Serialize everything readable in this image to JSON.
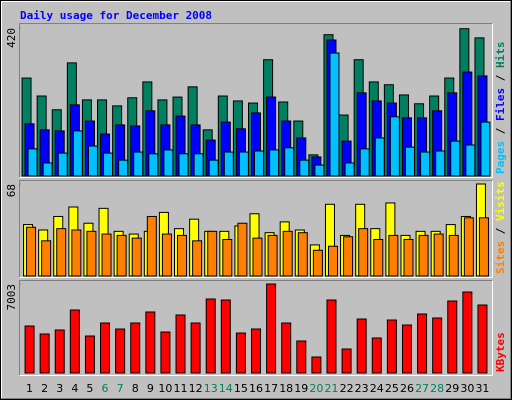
{
  "chart_data": [
    {
      "type": "bar",
      "title": "Daily usage for December 2008",
      "ylim": [
        0,
        420
      ],
      "yticks": [
        420
      ],
      "legend_separator": " / ",
      "series": [
        {
          "name": "Hits",
          "color": "#008060",
          "values": [
            278,
            227,
            188,
            321,
            216,
            216,
            199,
            222,
            267,
            216,
            224,
            253,
            131,
            227,
            213,
            207,
            330,
            210,
            156,
            60,
            401,
            173,
            330,
            267,
            259,
            230,
            205,
            227,
            278,
            418,
            392
          ]
        },
        {
          "name": "Files",
          "color": "#0000ff",
          "values": [
            148,
            131,
            128,
            202,
            156,
            119,
            145,
            142,
            185,
            145,
            170,
            145,
            102,
            153,
            134,
            179,
            224,
            156,
            108,
            54,
            386,
            99,
            236,
            213,
            207,
            165,
            165,
            185,
            236,
            295,
            284
          ]
        },
        {
          "name": "Pages",
          "color": "#00c0ff",
          "values": [
            77,
            37,
            65,
            128,
            85,
            65,
            45,
            68,
            63,
            74,
            63,
            63,
            45,
            68,
            68,
            71,
            74,
            80,
            45,
            31,
            349,
            37,
            77,
            108,
            168,
            82,
            68,
            71,
            99,
            88,
            153
          ]
        }
      ]
    },
    {
      "type": "bar",
      "ylim": [
        0,
        68
      ],
      "yticks": [
        68
      ],
      "legend_separator": " / ",
      "series": [
        {
          "name": "Visits",
          "color": "#ffff00",
          "values": [
            38,
            34,
            44,
            51,
            39,
            50,
            33,
            31,
            33,
            47,
            35,
            42,
            33,
            33,
            37,
            46,
            32,
            40,
            34,
            23,
            53,
            30,
            53,
            35,
            54,
            30,
            33,
            33,
            38,
            44,
            68
          ]
        },
        {
          "name": "Sites",
          "color": "#ff8000",
          "values": [
            36,
            26,
            35,
            34,
            33,
            31,
            30,
            28,
            44,
            31,
            30,
            26,
            33,
            27,
            39,
            28,
            30,
            33,
            32,
            19,
            22,
            29,
            35,
            27,
            30,
            27,
            30,
            31,
            30,
            43,
            43
          ]
        }
      ]
    },
    {
      "type": "bar",
      "ylim": [
        0,
        7003
      ],
      "yticks": [
        7003
      ],
      "legend_separator": " / ",
      "categories": [
        "1",
        "2",
        "3",
        "4",
        "5",
        "6",
        "7",
        "8",
        "9",
        "10",
        "11",
        "12",
        "13",
        "14",
        "15",
        "16",
        "17",
        "18",
        "19",
        "20",
        "21",
        "22",
        "23",
        "24",
        "25",
        "26",
        "27",
        "28",
        "29",
        "30",
        "31"
      ],
      "label_colors": [
        "#000000",
        "#000000",
        "#000000",
        "#000000",
        "#000000",
        "#008060",
        "#008060",
        "#000000",
        "#000000",
        "#000000",
        "#000000",
        "#000000",
        "#008060",
        "#008060",
        "#000000",
        "#000000",
        "#000000",
        "#000000",
        "#000000",
        "#008060",
        "#008060",
        "#000000",
        "#000000",
        "#000000",
        "#000000",
        "#000000",
        "#008060",
        "#008060",
        "#000000",
        "#000000",
        "#000000"
      ],
      "series": [
        {
          "name": "KBytes",
          "color": "#ff0000",
          "values": [
            3698,
            3069,
            3384,
            4958,
            2911,
            3934,
            3462,
            3934,
            4800,
            3226,
            4564,
            3934,
            5822,
            5744,
            3147,
            3462,
            7003,
            3934,
            2518,
            1259,
            5744,
            1888,
            4249,
            2754,
            4170,
            3777,
            4642,
            4328,
            5665,
            6373,
            5350
          ]
        }
      ]
    }
  ]
}
